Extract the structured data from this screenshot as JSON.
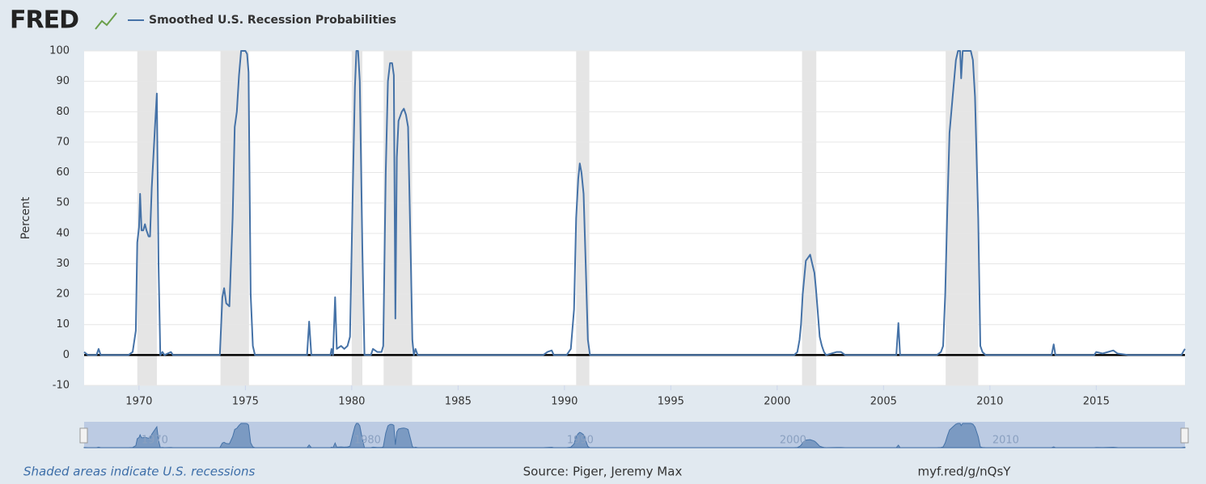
{
  "chart_data": {
    "type": "line",
    "brand": "FRED",
    "y_label": "Percent",
    "footer_left": "Shaded areas indicate U.S. recessions",
    "source": "Source: Piger, Jeremy Max",
    "link": "myf.red/g/nQsY",
    "xlim": [
      1967.42,
      2019.17
    ],
    "xticks": [
      1970,
      1975,
      1980,
      1985,
      1990,
      1995,
      2000,
      2005,
      2010,
      2015
    ],
    "ylim": [
      -10,
      100
    ],
    "yticks": [
      -10,
      0,
      10,
      20,
      30,
      40,
      50,
      60,
      70,
      80,
      90,
      100
    ],
    "grid": true,
    "navigator_xticks": [
      1970,
      1980,
      1990,
      2000,
      2010
    ],
    "recession_color": "#e5e5e5",
    "recessions": [
      [
        1969.92,
        1970.84
      ],
      [
        1973.83,
        1975.17
      ],
      [
        1980.0,
        1980.5
      ],
      [
        1981.5,
        1982.84
      ],
      [
        1990.55,
        1991.17
      ],
      [
        2001.17,
        2001.84
      ],
      [
        2007.92,
        2009.45
      ]
    ],
    "x": [
      1967.42,
      1967.6,
      1968.0,
      1968.1,
      1968.2,
      1969.5,
      1969.7,
      1969.85,
      1969.92,
      1970.0,
      1970.05,
      1970.12,
      1970.2,
      1970.28,
      1970.35,
      1970.45,
      1970.52,
      1970.6,
      1970.75,
      1970.84,
      1970.92,
      1971.0,
      1971.1,
      1971.2,
      1971.5,
      1971.6,
      1973.8,
      1973.92,
      1974.0,
      1974.1,
      1974.25,
      1974.4,
      1974.5,
      1974.6,
      1974.7,
      1974.8,
      1975.0,
      1975.08,
      1975.15,
      1975.25,
      1975.35,
      1975.45,
      1977.9,
      1978.0,
      1978.1,
      1979.0,
      1979.05,
      1979.12,
      1979.22,
      1979.3,
      1979.5,
      1979.65,
      1979.8,
      1979.92,
      1980.05,
      1980.15,
      1980.22,
      1980.3,
      1980.38,
      1980.5,
      1980.6,
      1980.9,
      1981.0,
      1981.2,
      1981.4,
      1981.48,
      1981.6,
      1981.7,
      1981.8,
      1981.9,
      1981.98,
      1982.05,
      1982.12,
      1982.2,
      1982.35,
      1982.45,
      1982.55,
      1982.65,
      1982.78,
      1982.85,
      1982.92,
      1983.0,
      1983.1,
      1989.0,
      1989.2,
      1989.4,
      1989.5,
      1990.1,
      1990.3,
      1990.45,
      1990.55,
      1990.65,
      1990.72,
      1990.8,
      1990.9,
      1991.0,
      1991.1,
      1991.2,
      2000.8,
      2000.95,
      2001.05,
      2001.12,
      2001.2,
      2001.35,
      2001.45,
      2001.55,
      2001.65,
      2001.75,
      2001.82,
      2001.9,
      2002.0,
      2002.1,
      2002.2,
      2002.3,
      2002.8,
      2003.0,
      2003.2,
      2005.6,
      2005.7,
      2005.78,
      2007.5,
      2007.7,
      2007.8,
      2007.9,
      2008.0,
      2008.1,
      2008.25,
      2008.4,
      2008.5,
      2008.6,
      2008.65,
      2008.72,
      2009.1,
      2009.2,
      2009.3,
      2009.45,
      2009.55,
      2009.65,
      2009.8,
      2012.9,
      2013.0,
      2013.08,
      2014.9,
      2015.0,
      2015.3,
      2015.8,
      2016.0,
      2016.5,
      2019.0,
      2019.17
    ],
    "series": [
      {
        "name": "Smoothed U.S. Recession Probabilities",
        "color": "#4572a7",
        "values": [
          1,
          0,
          0,
          2,
          0,
          0,
          1,
          8,
          37,
          42,
          53,
          41,
          41,
          43,
          41,
          39,
          39,
          55,
          75,
          86,
          30,
          0,
          1,
          0,
          1,
          0,
          0,
          19,
          22,
          17,
          16,
          45,
          75,
          80,
          92,
          100,
          100,
          99,
          93,
          20,
          3,
          0,
          0,
          11,
          0,
          0,
          2,
          0,
          19,
          2,
          3,
          2,
          3,
          6,
          55,
          88,
          100,
          100,
          90,
          35,
          0,
          0,
          2,
          1,
          1,
          3,
          60,
          90,
          96,
          96,
          92,
          12,
          65,
          77,
          80,
          81,
          79,
          75,
          30,
          5,
          0,
          2,
          0,
          0,
          1,
          1.5,
          0,
          0,
          2,
          15,
          45,
          58,
          63,
          60,
          53,
          30,
          5,
          0,
          0,
          1,
          5,
          10,
          20,
          31,
          32,
          33,
          30,
          27,
          22,
          15,
          6,
          3,
          1,
          0,
          1,
          1,
          0,
          0,
          10.5,
          0,
          0,
          1,
          3,
          20,
          48,
          73,
          85,
          97,
          100,
          100,
          91,
          100,
          100,
          97,
          85,
          45,
          3,
          1,
          0,
          0,
          3.5,
          0,
          0,
          1,
          0.5,
          1.5,
          0.5,
          0,
          0,
          2
        ]
      }
    ]
  }
}
